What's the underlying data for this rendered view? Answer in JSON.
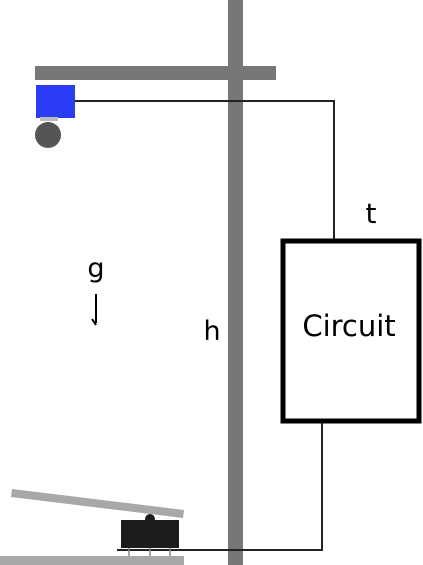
{
  "labels": {
    "time": "t",
    "gravity": "g",
    "height": "h",
    "circuit": "Circuit"
  },
  "colors": {
    "pole": "#777777",
    "magnet": "#2b3cf5",
    "ball": "#555555",
    "wire": "#222222",
    "switch": "#1c1c1c",
    "lever": "#a8a8a8",
    "base": "#a8a8a8",
    "text": "#000000"
  }
}
